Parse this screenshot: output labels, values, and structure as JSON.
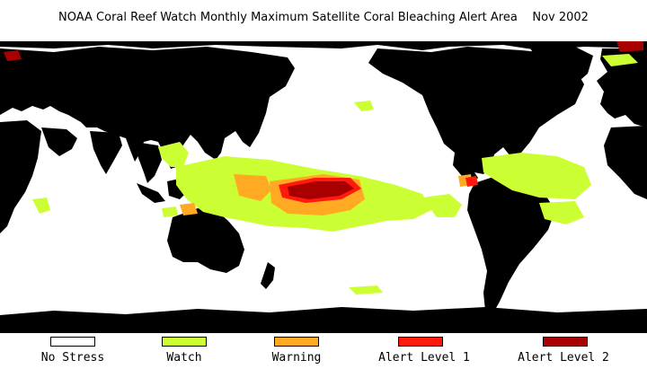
{
  "title": "NOAA Coral Reef Watch Monthly Maximum Satellite Coral Bleaching Alert Area",
  "date": "Nov 2002",
  "colors": {
    "land": "#000000",
    "ocean": "#ffffff",
    "no_stress": "#ffffff",
    "watch": "#ccff33",
    "warning": "#ffaa22",
    "alert1": "#ff1a0d",
    "alert2": "#a80000"
  },
  "legend": [
    {
      "label": "No Stress",
      "color": "#ffffff"
    },
    {
      "label": "Watch",
      "color": "#ccff33"
    },
    {
      "label": "Warning",
      "color": "#ffaa22"
    },
    {
      "label": "Alert Level 1",
      "color": "#ff1a0d"
    },
    {
      "label": "Alert Level 2",
      "color": "#a80000"
    }
  ]
}
